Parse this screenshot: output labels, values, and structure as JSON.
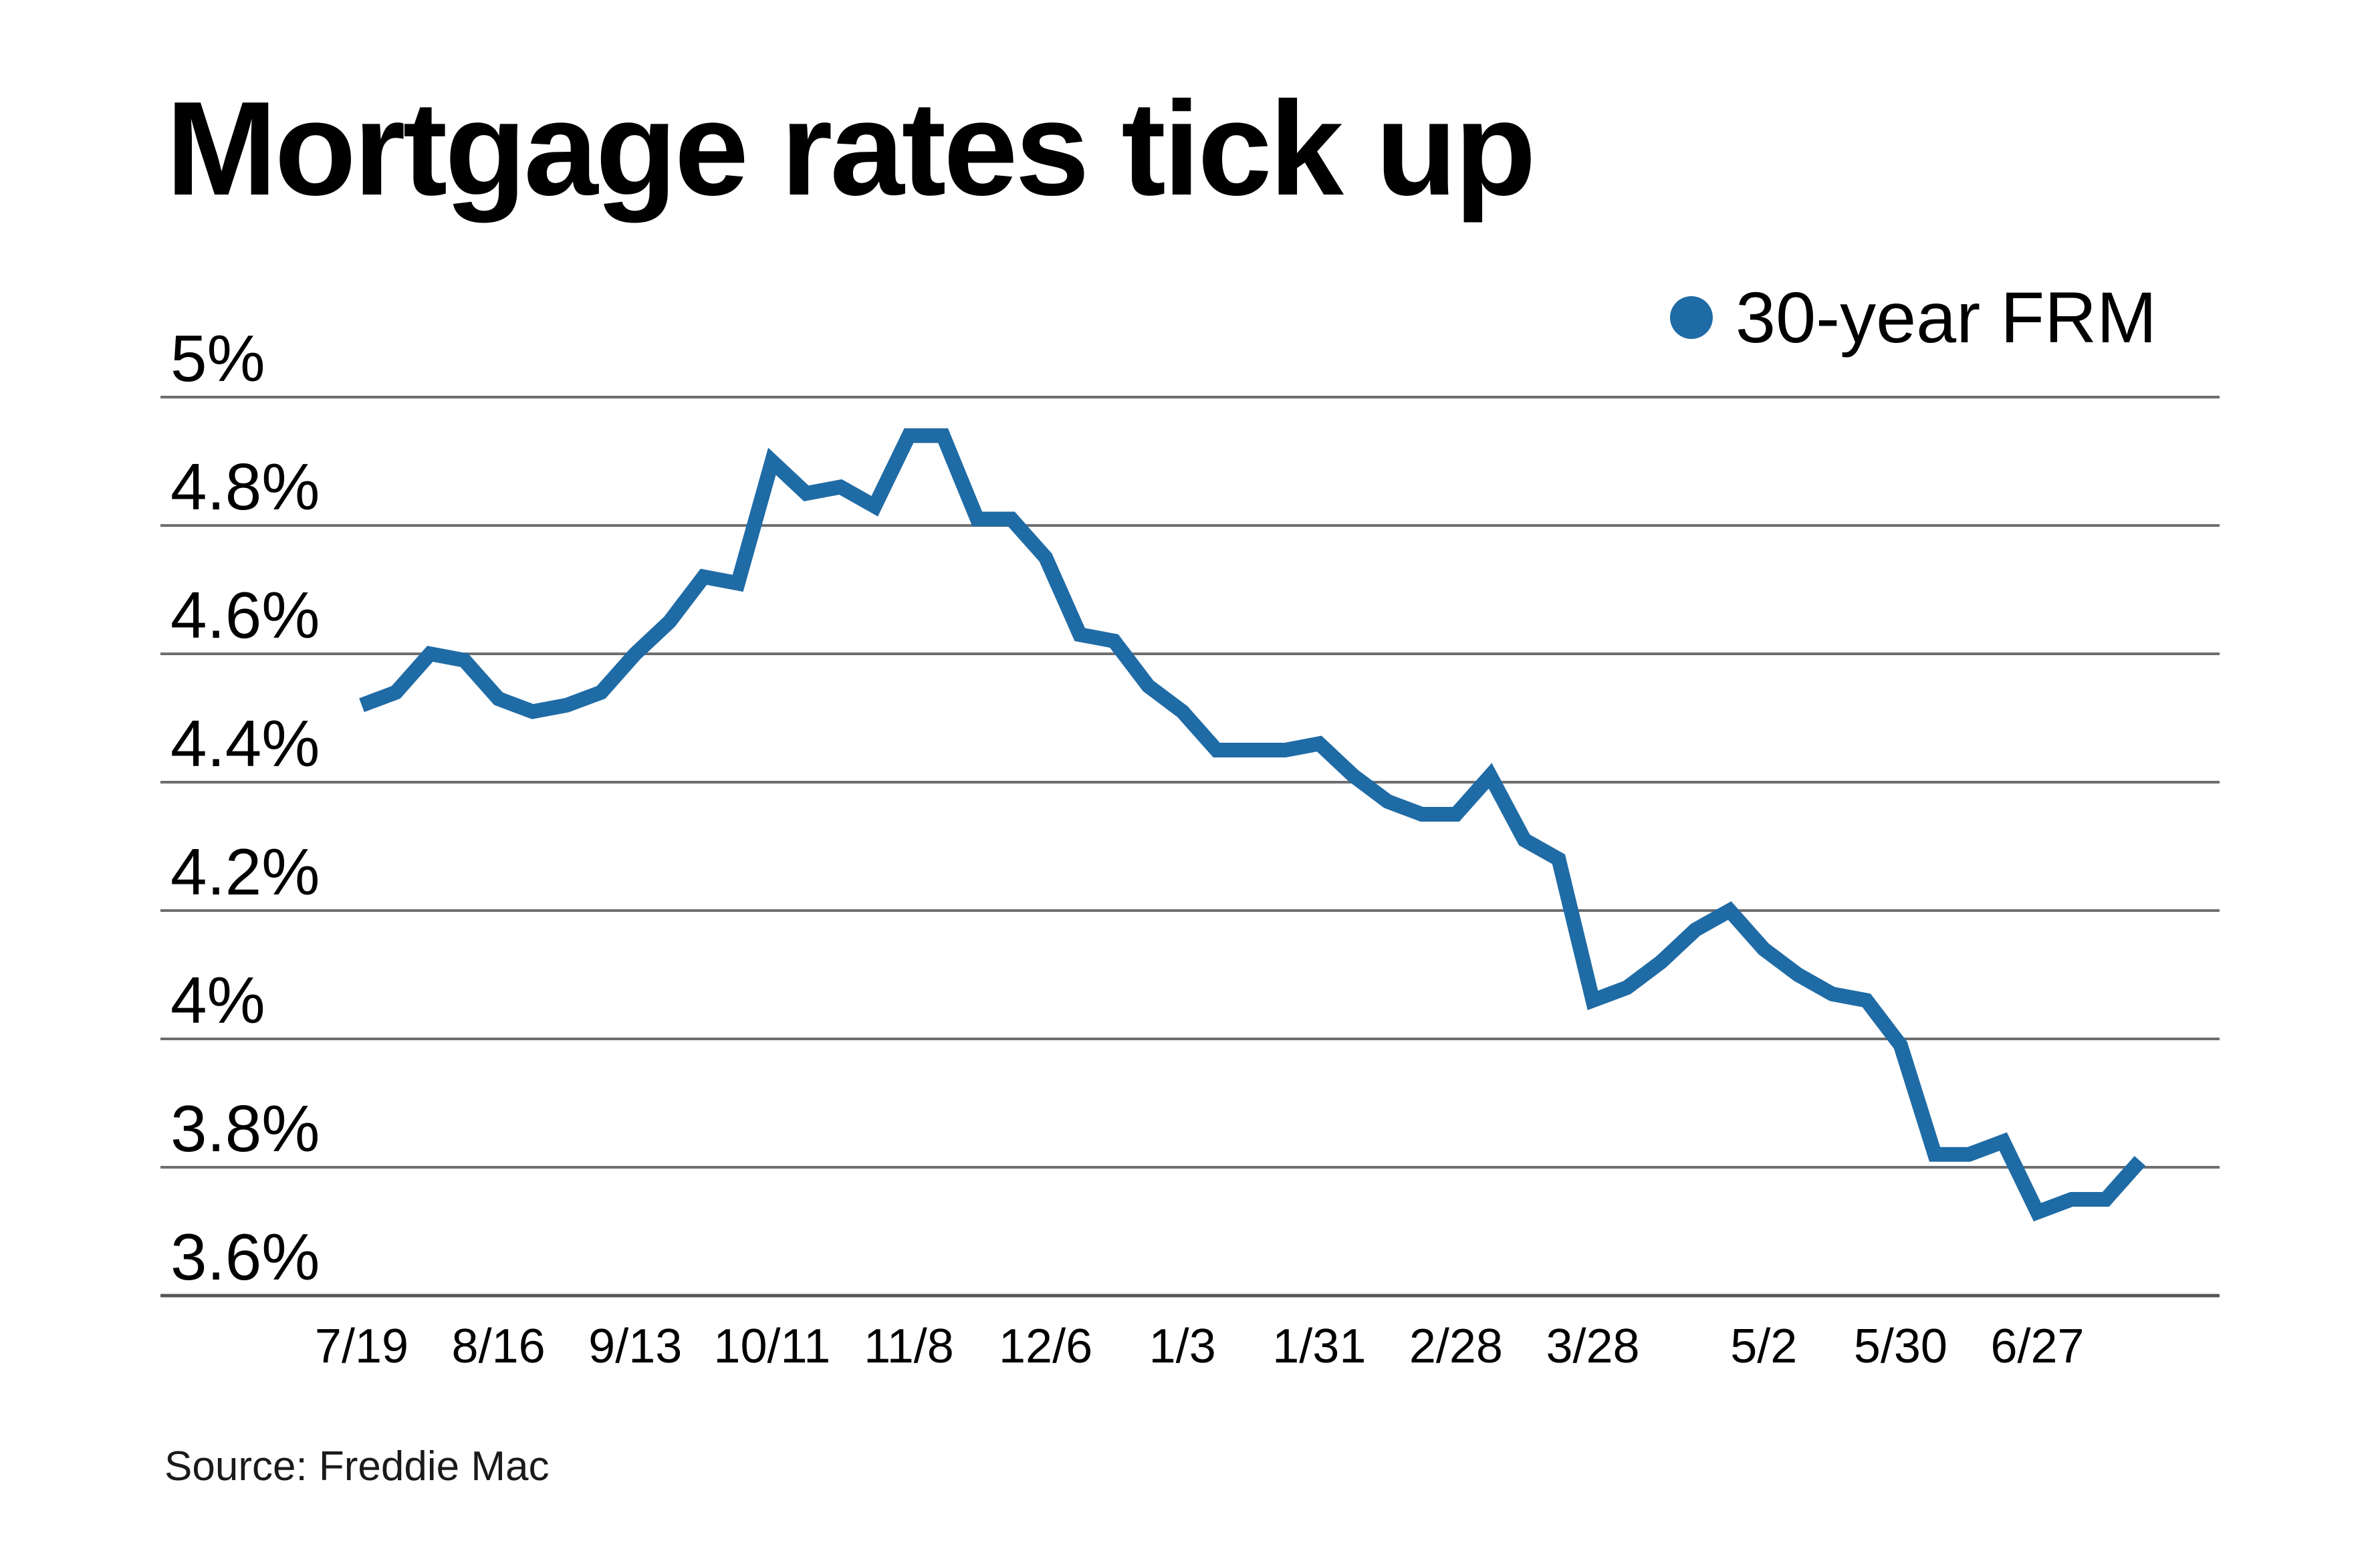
{
  "title": "Mortgage rates tick up",
  "legend": {
    "label": "30-year FRM"
  },
  "source": "Source: Freddie Mac",
  "colors": {
    "series": "#1f6ba5",
    "grid": "#6d6e71",
    "grid_bottom": "#55565a",
    "text": "#000000",
    "background": "#ffffff"
  },
  "chart_data": {
    "type": "line",
    "title": "Mortgage rates tick up",
    "source": "Source: Freddie Mac",
    "grid": true,
    "legend_position": "top-right",
    "ylim": [
      3.6,
      5.0
    ],
    "y_ticks": [
      {
        "label": "5%",
        "value": 5.0
      },
      {
        "label": "4.8%",
        "value": 4.8
      },
      {
        "label": "4.6%",
        "value": 4.6
      },
      {
        "label": "4.4%",
        "value": 4.4
      },
      {
        "label": "4.2%",
        "value": 4.2
      },
      {
        "label": "4%",
        "value": 4.0
      },
      {
        "label": "3.8%",
        "value": 3.8
      },
      {
        "label": "3.6%",
        "value": 3.6
      }
    ],
    "x": [
      "7/19",
      "7/26",
      "8/2",
      "8/9",
      "8/16",
      "8/23",
      "8/30",
      "9/6",
      "9/13",
      "9/20",
      "9/27",
      "10/4",
      "10/11",
      "10/18",
      "10/25",
      "11/1",
      "11/8",
      "11/15",
      "11/21",
      "11/29",
      "12/6",
      "12/13",
      "12/20",
      "12/27",
      "1/3",
      "1/10",
      "1/17",
      "1/24",
      "1/31",
      "2/7",
      "2/14",
      "2/21",
      "2/28",
      "3/7",
      "3/14",
      "3/21",
      "3/28",
      "4/4",
      "4/11",
      "4/18",
      "4/25",
      "5/2",
      "5/9",
      "5/16",
      "5/23",
      "5/30",
      "6/6",
      "6/13",
      "6/20",
      "6/27",
      "7/3",
      "7/11",
      "7/18"
    ],
    "x_tick_labels": [
      {
        "index": 0,
        "label": "7/19"
      },
      {
        "index": 4,
        "label": "8/16"
      },
      {
        "index": 8,
        "label": "9/13"
      },
      {
        "index": 12,
        "label": "10/11"
      },
      {
        "index": 16,
        "label": "11/8"
      },
      {
        "index": 20,
        "label": "12/6"
      },
      {
        "index": 24,
        "label": "1/3"
      },
      {
        "index": 28,
        "label": "1/31"
      },
      {
        "index": 32,
        "label": "2/28"
      },
      {
        "index": 36,
        "label": "3/28"
      },
      {
        "index": 41,
        "label": "5/2"
      },
      {
        "index": 45,
        "label": "5/30"
      },
      {
        "index": 49,
        "label": "6/27"
      }
    ],
    "series": [
      {
        "name": "30-year FRM",
        "values": [
          4.52,
          4.54,
          4.6,
          4.59,
          4.53,
          4.51,
          4.52,
          4.54,
          4.6,
          4.65,
          4.72,
          4.71,
          4.9,
          4.85,
          4.86,
          4.83,
          4.94,
          4.94,
          4.81,
          4.81,
          4.75,
          4.63,
          4.62,
          4.55,
          4.51,
          4.45,
          4.45,
          4.45,
          4.46,
          4.41,
          4.37,
          4.35,
          4.35,
          4.41,
          4.31,
          4.28,
          4.06,
          4.08,
          4.12,
          4.17,
          4.2,
          4.14,
          4.1,
          4.07,
          4.06,
          3.99,
          3.82,
          3.82,
          3.84,
          3.73,
          3.75,
          3.75,
          3.81
        ]
      }
    ]
  }
}
